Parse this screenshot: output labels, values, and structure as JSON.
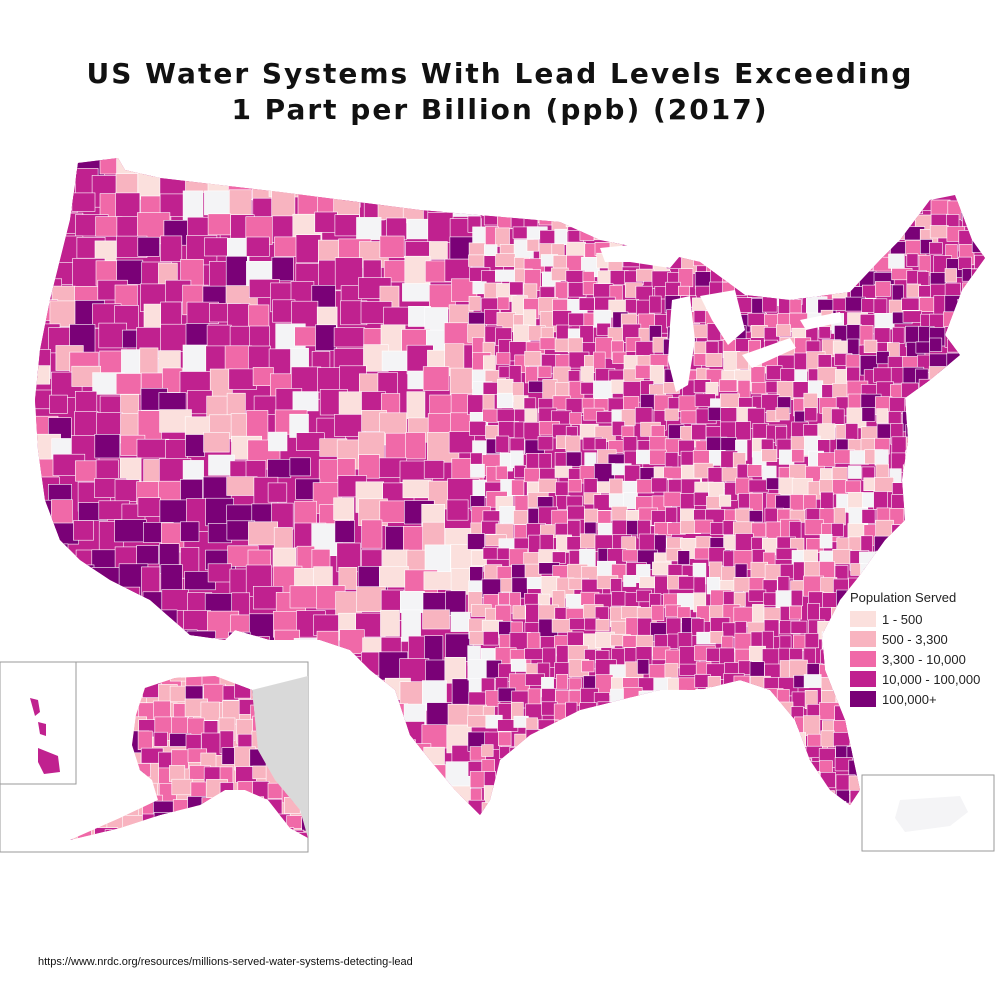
{
  "title": {
    "line1": "US Water Systems With Lead Levels Exceeding",
    "line2": "1 Part per Billion (ppb) (2017)"
  },
  "legend": {
    "title": "Population Served",
    "items": [
      {
        "label": "1 - 500",
        "color": "#fbe0dd"
      },
      {
        "label": "500 - 3,300",
        "color": "#f8b4c0"
      },
      {
        "label": "3,300 - 10,000",
        "color": "#f069a8"
      },
      {
        "label": "10,000 - 100,000",
        "color": "#c0218f"
      },
      {
        "label": "100,000+",
        "color": "#7a0177"
      }
    ]
  },
  "colors": {
    "no_data": "#f4f4f6",
    "canada": "#d9d9d9",
    "border": "#ffffff"
  },
  "source": "https://www.nrdc.org/resources/millions-served-water-systems-detecting-lead"
}
